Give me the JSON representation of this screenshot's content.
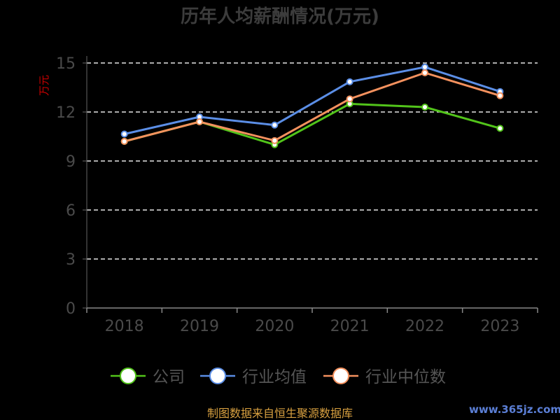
{
  "chart_data": {
    "type": "line",
    "title": "历年人均薪酬情况(万元)",
    "ylabel": "万元",
    "categories": [
      "2018",
      "2019",
      "2020",
      "2021",
      "2022",
      "2023"
    ],
    "ylim": [
      0,
      15
    ],
    "yticks": [
      0,
      3,
      6,
      9,
      12,
      15
    ],
    "grid": true,
    "legend_position": "bottom",
    "series": [
      {
        "name": "公司",
        "color": "#52c41a",
        "values": [
          10.2,
          11.4,
          10.0,
          12.5,
          12.3,
          11.0
        ]
      },
      {
        "name": "行业均值",
        "color": "#5b8ee6",
        "values": [
          10.65,
          11.7,
          11.2,
          13.85,
          14.75,
          13.25
        ]
      },
      {
        "name": "行业中位数",
        "color": "#f4915e",
        "values": [
          10.2,
          11.4,
          10.25,
          12.8,
          14.4,
          13.0
        ]
      }
    ]
  },
  "footer": {
    "source": "制图数据来自恒生聚源数据库",
    "watermark": "www.365jz.com"
  }
}
